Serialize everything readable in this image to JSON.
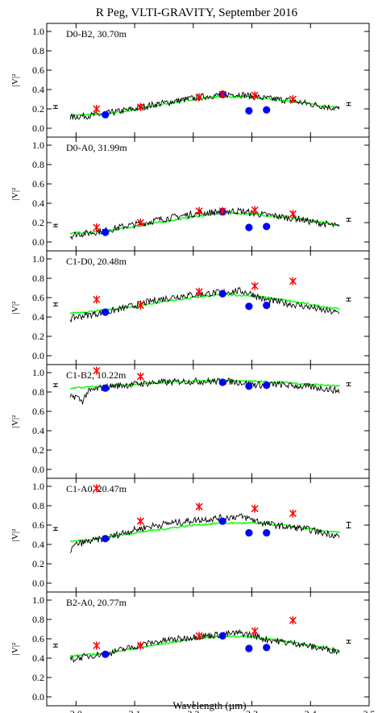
{
  "chart_data": {
    "type": "line",
    "title": "R Peg, VLTI-GRAVITY, September 2016",
    "xlabel": "Wavelength (µm)",
    "ylabel": "|V|²",
    "xlim": [
      1.95,
      2.5
    ],
    "ylim": [
      0.0,
      1.05
    ],
    "x_ticks": [
      "2.0",
      "2.1",
      "2.2",
      "2.3",
      "2.4",
      "2.5"
    ],
    "y_ticks": [
      "0.0",
      "0.2",
      "0.4",
      "0.6",
      "0.8",
      "1.0"
    ],
    "series_colors": {
      "observed": "#000000",
      "model": "#00ff00",
      "comparison_model": "#0000ff",
      "other_model": "#ff0000"
    },
    "panels": [
      {
        "label": "D0-B2, 30.70m",
        "observed_x": [
          1.99,
          2.0,
          2.02,
          2.04,
          2.06,
          2.08,
          2.1,
          2.12,
          2.14,
          2.16,
          2.18,
          2.2,
          2.22,
          2.24,
          2.26,
          2.28,
          2.3,
          2.32,
          2.34,
          2.36,
          2.38,
          2.4,
          2.42,
          2.44,
          2.45
        ],
        "observed_y": [
          0.11,
          0.12,
          0.13,
          0.14,
          0.16,
          0.18,
          0.2,
          0.23,
          0.25,
          0.27,
          0.29,
          0.31,
          0.33,
          0.34,
          0.35,
          0.35,
          0.33,
          0.31,
          0.3,
          0.29,
          0.27,
          0.25,
          0.23,
          0.21,
          0.2
        ],
        "model_x": [
          1.99,
          2.05,
          2.1,
          2.15,
          2.2,
          2.25,
          2.3,
          2.35,
          2.4,
          2.45
        ],
        "model_y": [
          0.13,
          0.15,
          0.19,
          0.25,
          0.3,
          0.33,
          0.32,
          0.29,
          0.25,
          0.21
        ],
        "blue_x": [
          2.05,
          2.25,
          2.295,
          2.325
        ],
        "blue_y": [
          0.14,
          0.35,
          0.18,
          0.19
        ],
        "red_x": [
          2.035,
          2.11,
          2.21,
          2.25,
          2.305,
          2.37
        ],
        "red_y": [
          0.2,
          0.22,
          0.32,
          0.35,
          0.34,
          0.3
        ],
        "left_errorbar": {
          "x": 1.965,
          "y": 0.22,
          "err": 0.015
        },
        "right_errorbar": {
          "x": 2.465,
          "y": 0.25,
          "err": 0.015
        }
      },
      {
        "label": "D0-A0, 31.99m",
        "observed_x": [
          1.99,
          2.0,
          2.02,
          2.04,
          2.06,
          2.08,
          2.1,
          2.12,
          2.14,
          2.16,
          2.18,
          2.2,
          2.22,
          2.24,
          2.26,
          2.28,
          2.3,
          2.32,
          2.34,
          2.36,
          2.38,
          2.4,
          2.42,
          2.44,
          2.45
        ],
        "observed_y": [
          0.06,
          0.08,
          0.09,
          0.11,
          0.13,
          0.16,
          0.18,
          0.2,
          0.23,
          0.25,
          0.27,
          0.29,
          0.3,
          0.31,
          0.32,
          0.32,
          0.3,
          0.28,
          0.27,
          0.25,
          0.24,
          0.21,
          0.19,
          0.17,
          0.15
        ],
        "model_x": [
          1.99,
          2.05,
          2.1,
          2.15,
          2.2,
          2.25,
          2.3,
          2.35,
          2.4,
          2.45
        ],
        "model_y": [
          0.09,
          0.11,
          0.16,
          0.21,
          0.26,
          0.3,
          0.29,
          0.26,
          0.22,
          0.17
        ],
        "blue_x": [
          2.05,
          2.25,
          2.295,
          2.325
        ],
        "blue_y": [
          0.1,
          0.31,
          0.15,
          0.16
        ],
        "red_x": [
          2.035,
          2.11,
          2.21,
          2.25,
          2.305,
          2.37
        ],
        "red_y": [
          0.15,
          0.2,
          0.32,
          0.32,
          0.33,
          0.29
        ],
        "left_errorbar": {
          "x": 1.965,
          "y": 0.17,
          "err": 0.012
        },
        "right_errorbar": {
          "x": 2.465,
          "y": 0.23,
          "err": 0.015
        }
      },
      {
        "label": "C1-D0, 20.48m",
        "observed_x": [
          1.99,
          2.0,
          2.02,
          2.04,
          2.06,
          2.08,
          2.1,
          2.12,
          2.14,
          2.16,
          2.18,
          2.2,
          2.22,
          2.24,
          2.26,
          2.28,
          2.3,
          2.32,
          2.34,
          2.36,
          2.38,
          2.4,
          2.42,
          2.44,
          2.45
        ],
        "observed_y": [
          0.38,
          0.4,
          0.42,
          0.44,
          0.46,
          0.49,
          0.52,
          0.55,
          0.58,
          0.6,
          0.62,
          0.63,
          0.64,
          0.65,
          0.66,
          0.67,
          0.64,
          0.58,
          0.56,
          0.54,
          0.52,
          0.5,
          0.47,
          0.45,
          0.44
        ],
        "model_x": [
          1.99,
          2.05,
          2.1,
          2.15,
          2.2,
          2.25,
          2.3,
          2.35,
          2.4,
          2.45
        ],
        "model_y": [
          0.44,
          0.47,
          0.51,
          0.56,
          0.6,
          0.63,
          0.62,
          0.58,
          0.53,
          0.48
        ],
        "blue_x": [
          2.05,
          2.25,
          2.295,
          2.325
        ],
        "blue_y": [
          0.45,
          0.64,
          0.51,
          0.52
        ],
        "red_x": [
          2.035,
          2.11,
          2.21,
          2.305,
          2.37
        ],
        "red_y": [
          0.58,
          0.52,
          0.66,
          0.72,
          0.77
        ],
        "left_errorbar": {
          "x": 1.965,
          "y": 0.53,
          "err": 0.015
        },
        "right_errorbar": {
          "x": 2.465,
          "y": 0.58,
          "err": 0.015
        }
      },
      {
        "label": "C1-B2, 10.22m",
        "observed_x": [
          1.99,
          2.0,
          2.01,
          2.02,
          2.04,
          2.06,
          2.08,
          2.1,
          2.12,
          2.14,
          2.16,
          2.18,
          2.2,
          2.22,
          2.24,
          2.26,
          2.28,
          2.3,
          2.32,
          2.34,
          2.36,
          2.38,
          2.4,
          2.42,
          2.44,
          2.45
        ],
        "observed_y": [
          0.74,
          0.76,
          0.7,
          0.8,
          0.84,
          0.86,
          0.87,
          0.88,
          0.89,
          0.9,
          0.9,
          0.91,
          0.91,
          0.91,
          0.91,
          0.91,
          0.9,
          0.88,
          0.87,
          0.88,
          0.87,
          0.86,
          0.85,
          0.84,
          0.82,
          0.81
        ],
        "model_x": [
          1.99,
          2.05,
          2.1,
          2.15,
          2.2,
          2.25,
          2.3,
          2.35,
          2.4,
          2.45
        ],
        "model_y": [
          0.84,
          0.86,
          0.88,
          0.9,
          0.91,
          0.92,
          0.91,
          0.9,
          0.88,
          0.86
        ],
        "blue_x": [
          2.05,
          2.25,
          2.295,
          2.325
        ],
        "blue_y": [
          0.84,
          0.9,
          0.86,
          0.87
        ],
        "red_x": [
          2.035,
          2.11
        ],
        "red_y": [
          1.02,
          0.96
        ],
        "left_errorbar": {
          "x": 1.965,
          "y": 0.87,
          "err": 0.015
        },
        "right_errorbar": {
          "x": 2.465,
          "y": 0.88,
          "err": 0.015
        }
      },
      {
        "label": "C1-A0, 20.47m",
        "observed_x": [
          1.99,
          2.0,
          2.02,
          2.04,
          2.06,
          2.08,
          2.1,
          2.12,
          2.14,
          2.16,
          2.18,
          2.2,
          2.22,
          2.24,
          2.26,
          2.28,
          2.3,
          2.32,
          2.34,
          2.36,
          2.38,
          2.4,
          2.42,
          2.44,
          2.45
        ],
        "observed_y": [
          0.34,
          0.4,
          0.43,
          0.45,
          0.48,
          0.52,
          0.55,
          0.58,
          0.6,
          0.62,
          0.63,
          0.65,
          0.66,
          0.67,
          0.68,
          0.69,
          0.66,
          0.62,
          0.6,
          0.58,
          0.57,
          0.55,
          0.52,
          0.5,
          0.48
        ],
        "model_x": [
          1.99,
          2.05,
          2.1,
          2.15,
          2.2,
          2.25,
          2.3,
          2.35,
          2.4,
          2.45
        ],
        "model_y": [
          0.43,
          0.47,
          0.52,
          0.56,
          0.6,
          0.62,
          0.62,
          0.6,
          0.56,
          0.52
        ],
        "blue_x": [
          2.05,
          2.25,
          2.295,
          2.325
        ],
        "blue_y": [
          0.46,
          0.64,
          0.52,
          0.52
        ],
        "red_x": [
          2.035,
          2.11,
          2.21,
          2.305,
          2.37
        ],
        "red_y": [
          0.98,
          0.64,
          0.79,
          0.77,
          0.72
        ],
        "left_errorbar": {
          "x": 1.965,
          "y": 0.56,
          "err": 0.015
        },
        "right_errorbar": {
          "x": 2.465,
          "y": 0.6,
          "err": 0.03
        }
      },
      {
        "label": "B2-A0, 20.77m",
        "observed_x": [
          1.99,
          2.0,
          2.02,
          2.04,
          2.06,
          2.08,
          2.1,
          2.12,
          2.14,
          2.16,
          2.18,
          2.2,
          2.22,
          2.24,
          2.26,
          2.28,
          2.3,
          2.32,
          2.34,
          2.36,
          2.38,
          2.4,
          2.42,
          2.44,
          2.45
        ],
        "observed_y": [
          0.38,
          0.4,
          0.42,
          0.44,
          0.46,
          0.49,
          0.52,
          0.55,
          0.57,
          0.59,
          0.6,
          0.62,
          0.63,
          0.64,
          0.65,
          0.66,
          0.64,
          0.6,
          0.58,
          0.56,
          0.55,
          0.52,
          0.5,
          0.48,
          0.47
        ],
        "model_x": [
          1.99,
          2.05,
          2.1,
          2.15,
          2.2,
          2.25,
          2.3,
          2.35,
          2.4,
          2.45
        ],
        "model_y": [
          0.42,
          0.45,
          0.5,
          0.55,
          0.6,
          0.63,
          0.62,
          0.58,
          0.53,
          0.48
        ],
        "blue_x": [
          2.05,
          2.25,
          2.295,
          2.325
        ],
        "blue_y": [
          0.44,
          0.63,
          0.5,
          0.51
        ],
        "red_x": [
          2.035,
          2.11,
          2.21,
          2.305,
          2.37
        ],
        "red_y": [
          0.53,
          0.53,
          0.63,
          0.68,
          0.79
        ],
        "left_errorbar": {
          "x": 1.965,
          "y": 0.53,
          "err": 0.015
        },
        "right_errorbar": {
          "x": 2.465,
          "y": 0.57,
          "err": 0.015
        }
      }
    ]
  }
}
